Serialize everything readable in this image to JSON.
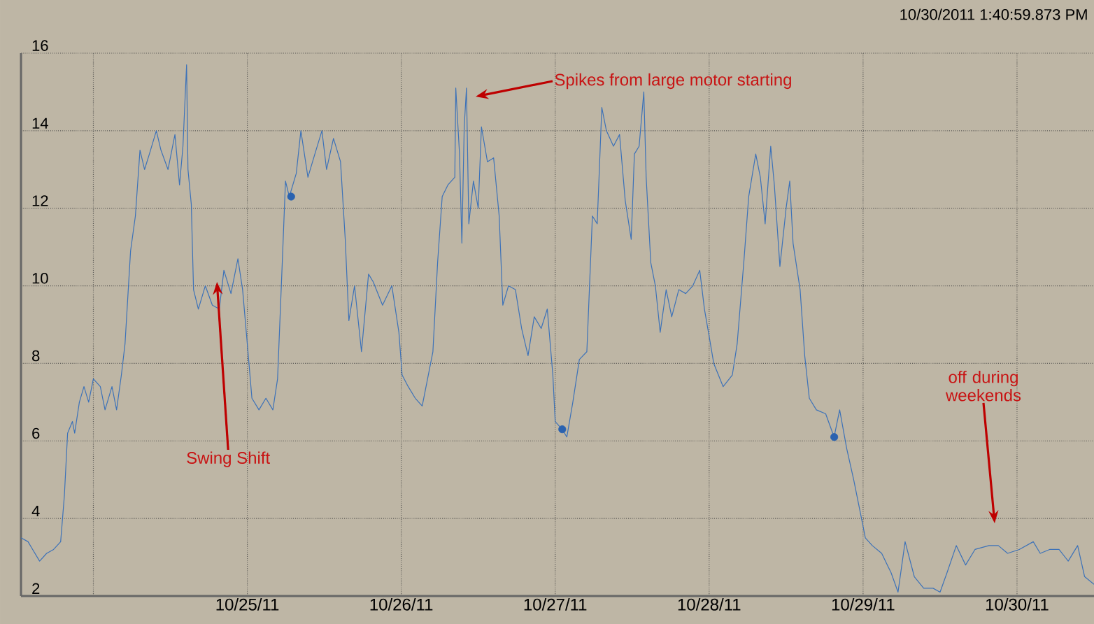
{
  "chart_data": {
    "type": "line",
    "annotations": [
      "10/30/2011 1:40:59.873 PM",
      "Spikes from large motor starting",
      {
        "text": "Swing Shift",
        "x": "2011-10-24T19:16",
        "y": 10.1
      },
      "off during weekends"
    ],
    "xlim": [
      "2011-10-23T12:43",
      "2011-10-30T12:00"
    ],
    "ylim": [
      2,
      16
    ],
    "xticks": [
      {
        "value": "2011-10-24",
        "label": null
      },
      {
        "value": "2011-10-25",
        "label": "10/25/11"
      },
      {
        "value": "2011-10-26",
        "label": "10/26/11"
      },
      {
        "value": "2011-10-27",
        "label": "10/27/11"
      },
      {
        "value": "2011-10-28",
        "label": "10/28/11"
      },
      {
        "value": "2011-10-29",
        "label": "10/29/11"
      },
      {
        "value": "2011-10-30",
        "label": "10/30/11"
      }
    ],
    "yticks": [
      2,
      4,
      6,
      8,
      10,
      12,
      14,
      16
    ],
    "grid": true,
    "series": [
      {
        "color": "#3d72b8",
        "marker": "none",
        "x": [
          "2011-10-23T12:43",
          "2011-10-23T13:49",
          "2011-10-23T14:32",
          "2011-10-23T15:37",
          "2011-10-23T16:43",
          "2011-10-23T17:48",
          "2011-10-23T18:54",
          "2011-10-23T19:29",
          "2011-10-23T19:59",
          "2011-10-23T20:44",
          "2011-10-23T21:05",
          "2011-10-23T21:49",
          "2011-10-23T22:32",
          "2011-10-23T23:16",
          "2011-10-24T00:00",
          "2011-10-24T01:05",
          "2011-10-24T01:49",
          "2011-10-24T02:54",
          "2011-10-24T03:37",
          "2011-10-24T04:22",
          "2011-10-24T04:56",
          "2011-10-24T05:48",
          "2011-10-24T06:33",
          "2011-10-24T07:16",
          "2011-10-24T07:59",
          "2011-10-24T08:44",
          "2011-10-24T09:49",
          "2011-10-24T10:32",
          "2011-10-24T11:38",
          "2011-10-24T12:43",
          "2011-10-24T13:26",
          "2011-10-24T13:58",
          "2011-10-24T14:32",
          "2011-10-24T14:45",
          "2011-10-24T15:16",
          "2011-10-24T15:37",
          "2011-10-24T16:22",
          "2011-10-24T17:27",
          "2011-10-24T18:33",
          "2011-10-24T19:38",
          "2011-10-24T20:21",
          "2011-10-24T21:27",
          "2011-10-24T22:32",
          "2011-10-24T23:16",
          "2011-10-25T00:00",
          "2011-10-25T00:43",
          "2011-10-25T01:49",
          "2011-10-25T02:54",
          "2011-10-25T03:59",
          "2011-10-25T04:43",
          "2011-10-25T05:27",
          "2011-10-25T05:57",
          "2011-10-25T06:33",
          "2011-10-25T07:38",
          "2011-10-25T08:21",
          "2011-10-25T09:27",
          "2011-10-25T10:32",
          "2011-10-25T11:38",
          "2011-10-25T12:21",
          "2011-10-25T13:26",
          "2011-10-25T14:32",
          "2011-10-25T15:16",
          "2011-10-25T15:50",
          "2011-10-25T16:43",
          "2011-10-25T17:48",
          "2011-10-25T18:54",
          "2011-10-25T19:38",
          "2011-10-25T21:05",
          "2011-10-25T22:32",
          "2011-10-25T23:38",
          "2011-10-26T00:08",
          "2011-10-26T01:05",
          "2011-10-26T02:11",
          "2011-10-26T03:16",
          "2011-10-26T03:59",
          "2011-10-26T04:56",
          "2011-10-26T05:40",
          "2011-10-26T06:23",
          "2011-10-26T07:16",
          "2011-10-26T08:21",
          "2011-10-26T08:30",
          "2011-10-26T09:05",
          "2011-10-26T09:27",
          "2011-10-26T09:49",
          "2011-10-26T10:10",
          "2011-10-26T10:32",
          "2011-10-26T11:15",
          "2011-10-26T12:00",
          "2011-10-26T12:30",
          "2011-10-26T13:26",
          "2011-10-26T14:24",
          "2011-10-26T15:16",
          "2011-10-26T15:50",
          "2011-10-26T16:43",
          "2011-10-26T17:48",
          "2011-10-26T18:46",
          "2011-10-26T19:46",
          "2011-10-26T20:44",
          "2011-10-26T21:49",
          "2011-10-26T22:46",
          "2011-10-26T23:38",
          "2011-10-27T00:00",
          "2011-10-27T01:05",
          "2011-10-27T01:49",
          "2011-10-27T02:45",
          "2011-10-27T03:46",
          "2011-10-27T04:56",
          "2011-10-27T05:48",
          "2011-10-27T06:33",
          "2011-10-27T07:16",
          "2011-10-27T07:59",
          "2011-10-27T09:05",
          "2011-10-27T10:02",
          "2011-10-27T10:55",
          "2011-10-27T11:51",
          "2011-10-27T12:21",
          "2011-10-27T13:05",
          "2011-10-27T13:49",
          "2011-10-27T14:11",
          "2011-10-27T14:54",
          "2011-10-27T15:37",
          "2011-10-27T16:22",
          "2011-10-27T17:18",
          "2011-10-27T18:10",
          "2011-10-27T19:16",
          "2011-10-27T20:21",
          "2011-10-27T21:27",
          "2011-10-27T22:32",
          "2011-10-27T23:16",
          "2011-10-28T00:00",
          "2011-10-28T00:43",
          "2011-10-28T02:11",
          "2011-10-28T03:37",
          "2011-10-28T04:22",
          "2011-10-28T05:27",
          "2011-10-28T06:10",
          "2011-10-28T07:16",
          "2011-10-28T07:59",
          "2011-10-28T08:44",
          "2011-10-28T09:36",
          "2011-10-28T10:10",
          "2011-10-28T11:02",
          "2011-10-28T12:00",
          "2011-10-28T12:34",
          "2011-10-28T13:05",
          "2011-10-28T14:11",
          "2011-10-28T14:54",
          "2011-10-28T15:37",
          "2011-10-28T16:43",
          "2011-10-28T18:10",
          "2011-10-28T19:29",
          "2011-10-28T20:21",
          "2011-10-28T21:27",
          "2011-10-28T22:32",
          "2011-10-28T23:38",
          "2011-10-29T00:21",
          "2011-10-29T01:26",
          "2011-10-29T02:54",
          "2011-10-29T04:22",
          "2011-10-29T05:27",
          "2011-10-29T06:33",
          "2011-10-29T07:59",
          "2011-10-29T09:27",
          "2011-10-29T10:55",
          "2011-10-29T12:00",
          "2011-10-29T13:05",
          "2011-10-29T14:32",
          "2011-10-29T15:59",
          "2011-10-29T17:27",
          "2011-10-29T19:38",
          "2011-10-29T21:05",
          "2011-10-29T22:32",
          "2011-10-30T00:21",
          "2011-10-30T02:32",
          "2011-10-30T03:37",
          "2011-10-30T05:05",
          "2011-10-30T06:33",
          "2011-10-30T07:59",
          "2011-10-30T09:27",
          "2011-10-30T10:32",
          "2011-10-30T12:00"
        ],
        "values": [
          3.5,
          3.4,
          3.2,
          2.9,
          3.1,
          3.2,
          3.4,
          4.6,
          6.2,
          6.5,
          6.2,
          7.0,
          7.4,
          7.0,
          7.6,
          7.4,
          6.8,
          7.4,
          6.8,
          7.7,
          8.5,
          10.9,
          11.8,
          13.5,
          13.0,
          13.4,
          14.0,
          13.5,
          13.0,
          13.9,
          12.6,
          13.6,
          15.7,
          13.0,
          12.1,
          9.9,
          9.4,
          10.0,
          9.5,
          9.4,
          10.4,
          9.8,
          10.7,
          9.9,
          8.5,
          7.1,
          6.8,
          7.1,
          6.8,
          7.6,
          10.6,
          12.7,
          12.3,
          12.9,
          14.0,
          12.8,
          13.4,
          14.0,
          13.0,
          13.8,
          13.2,
          11.2,
          9.1,
          10.0,
          8.3,
          10.3,
          10.1,
          9.5,
          10.0,
          8.8,
          7.7,
          7.4,
          7.1,
          6.9,
          7.5,
          8.3,
          10.6,
          12.3,
          12.6,
          12.8,
          15.1,
          13.4,
          11.1,
          14.1,
          15.1,
          11.6,
          12.7,
          12.0,
          14.1,
          13.2,
          13.3,
          11.8,
          9.5,
          10.0,
          9.9,
          8.9,
          8.2,
          9.2,
          8.9,
          9.4,
          7.7,
          6.5,
          6.3,
          6.1,
          7.0,
          8.1,
          8.3,
          11.8,
          11.6,
          14.6,
          14.0,
          13.6,
          13.9,
          12.2,
          11.2,
          13.4,
          13.6,
          15.0,
          12.8,
          10.6,
          10.0,
          8.8,
          9.9,
          9.2,
          9.9,
          9.8,
          10.0,
          10.4,
          9.4,
          8.7,
          8.0,
          7.4,
          7.7,
          8.5,
          10.7,
          12.3,
          13.4,
          12.8,
          11.6,
          13.6,
          12.6,
          10.5,
          12.0,
          12.7,
          11.1,
          9.9,
          8.2,
          7.1,
          6.8,
          6.7,
          6.1,
          6.8,
          5.8,
          5.0,
          4.1,
          3.5,
          3.3,
          3.1,
          2.6,
          2.1,
          3.4,
          2.5,
          2.2,
          2.2,
          2.1,
          2.6,
          3.3,
          2.8,
          3.2,
          3.3,
          3.3,
          3.1,
          3.2,
          3.4,
          3.1,
          3.2,
          3.2,
          2.9,
          3.3,
          2.5,
          2.3
        ]
      },
      {
        "type": "scatter",
        "color": "#2a62b0",
        "marker": "circle",
        "x": [
          "2011-10-25T06:50",
          "2011-10-27T01:06",
          "2011-10-28T19:30"
        ],
        "values": [
          12.3,
          6.3,
          6.1
        ]
      }
    ]
  }
}
